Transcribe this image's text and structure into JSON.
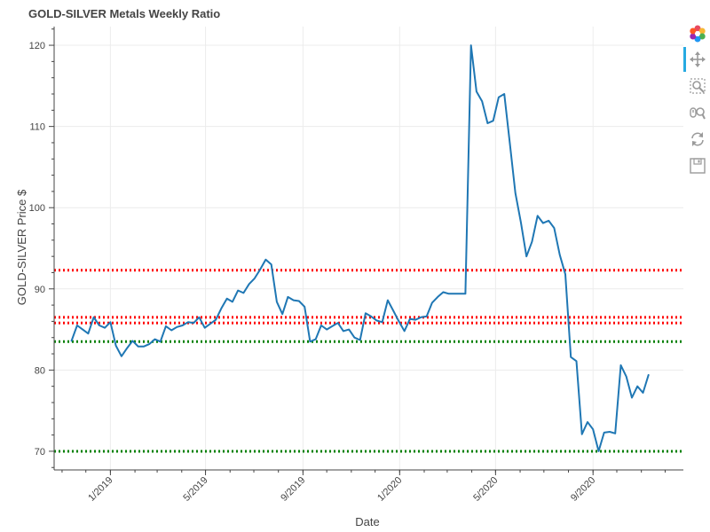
{
  "chart_data": {
    "type": "line",
    "title": "GOLD-SILVER Metals Weekly Ratio",
    "xlabel": "Date",
    "ylabel": "GOLD-SILVER Price $",
    "x_range": [
      "2018-10-22",
      "2020-12-24"
    ],
    "ylim": [
      67.7,
      122.3
    ],
    "y_ticks": [
      70,
      80,
      90,
      100,
      110,
      120
    ],
    "x_ticks": [
      {
        "date": "2019-01-01",
        "label": "1/2019"
      },
      {
        "date": "2019-05-01",
        "label": "5/2019"
      },
      {
        "date": "2019-09-01",
        "label": "9/2019"
      },
      {
        "date": "2020-01-01",
        "label": "1/2020"
      },
      {
        "date": "2020-05-01",
        "label": "5/2020"
      },
      {
        "date": "2020-09-01",
        "label": "9/2020"
      }
    ],
    "grid": true,
    "series": [
      {
        "color": "#1f77b4",
        "points": [
          [
            "2018-11-13",
            83.6
          ],
          [
            "2018-11-20",
            85.5
          ],
          [
            "2018-11-27",
            85.0
          ],
          [
            "2018-12-04",
            84.5
          ],
          [
            "2018-12-11",
            86.5
          ],
          [
            "2018-12-18",
            85.5
          ],
          [
            "2018-12-25",
            85.2
          ],
          [
            "2019-01-01",
            85.9
          ],
          [
            "2019-01-08",
            83.0
          ],
          [
            "2019-01-15",
            81.7
          ],
          [
            "2019-01-22",
            82.7
          ],
          [
            "2019-01-29",
            83.6
          ],
          [
            "2019-02-05",
            82.9
          ],
          [
            "2019-02-12",
            82.9
          ],
          [
            "2019-02-19",
            83.2
          ],
          [
            "2019-02-26",
            83.8
          ],
          [
            "2019-03-05",
            83.5
          ],
          [
            "2019-03-12",
            85.4
          ],
          [
            "2019-03-19",
            84.9
          ],
          [
            "2019-03-26",
            85.3
          ],
          [
            "2019-04-02",
            85.5
          ],
          [
            "2019-04-09",
            85.9
          ],
          [
            "2019-04-16",
            85.8
          ],
          [
            "2019-04-23",
            86.5
          ],
          [
            "2019-04-30",
            85.2
          ],
          [
            "2019-05-07",
            85.7
          ],
          [
            "2019-05-14",
            86.2
          ],
          [
            "2019-05-21",
            87.6
          ],
          [
            "2019-05-28",
            88.8
          ],
          [
            "2019-06-04",
            88.4
          ],
          [
            "2019-06-11",
            89.8
          ],
          [
            "2019-06-18",
            89.5
          ],
          [
            "2019-06-25",
            90.6
          ],
          [
            "2019-07-02",
            91.3
          ],
          [
            "2019-07-09",
            92.4
          ],
          [
            "2019-07-16",
            93.6
          ],
          [
            "2019-07-23",
            93.0
          ],
          [
            "2019-07-30",
            88.4
          ],
          [
            "2019-08-06",
            86.9
          ],
          [
            "2019-08-13",
            89.0
          ],
          [
            "2019-08-20",
            88.6
          ],
          [
            "2019-08-27",
            88.5
          ],
          [
            "2019-09-03",
            87.8
          ],
          [
            "2019-09-10",
            83.5
          ],
          [
            "2019-09-17",
            83.8
          ],
          [
            "2019-09-24",
            85.5
          ],
          [
            "2019-10-01",
            85.0
          ],
          [
            "2019-10-08",
            85.4
          ],
          [
            "2019-10-15",
            85.8
          ],
          [
            "2019-10-22",
            84.8
          ],
          [
            "2019-10-29",
            85.0
          ],
          [
            "2019-11-05",
            84.0
          ],
          [
            "2019-11-12",
            83.7
          ],
          [
            "2019-11-19",
            87.0
          ],
          [
            "2019-11-26",
            86.6
          ],
          [
            "2019-12-03",
            86.1
          ],
          [
            "2019-12-10",
            85.9
          ],
          [
            "2019-12-17",
            88.6
          ],
          [
            "2019-12-24",
            87.3
          ],
          [
            "2019-12-31",
            86.0
          ],
          [
            "2020-01-07",
            84.8
          ],
          [
            "2020-01-14",
            86.3
          ],
          [
            "2020-01-21",
            86.2
          ],
          [
            "2020-01-28",
            86.5
          ],
          [
            "2020-02-04",
            86.6
          ],
          [
            "2020-02-11",
            88.3
          ],
          [
            "2020-02-18",
            89.0
          ],
          [
            "2020-02-25",
            89.6
          ],
          [
            "2020-03-03",
            89.4
          ],
          [
            "2020-03-10",
            89.4
          ],
          [
            "2020-03-17",
            89.4
          ],
          [
            "2020-03-24",
            89.4
          ],
          [
            "2020-03-31",
            120.0
          ],
          [
            "2020-04-07",
            114.3
          ],
          [
            "2020-04-14",
            113.1
          ],
          [
            "2020-04-21",
            110.4
          ],
          [
            "2020-04-28",
            110.7
          ],
          [
            "2020-05-05",
            113.6
          ],
          [
            "2020-05-12",
            114.0
          ],
          [
            "2020-05-19",
            108.0
          ],
          [
            "2020-05-26",
            101.8
          ],
          [
            "2020-06-02",
            98.2
          ],
          [
            "2020-06-09",
            94.0
          ],
          [
            "2020-06-16",
            95.8
          ],
          [
            "2020-06-23",
            99.0
          ],
          [
            "2020-06-30",
            98.1
          ],
          [
            "2020-07-07",
            98.4
          ],
          [
            "2020-07-14",
            97.5
          ],
          [
            "2020-07-21",
            94.2
          ],
          [
            "2020-07-28",
            91.8
          ],
          [
            "2020-08-04",
            81.6
          ],
          [
            "2020-08-11",
            81.1
          ],
          [
            "2020-08-18",
            72.1
          ],
          [
            "2020-08-25",
            73.6
          ],
          [
            "2020-09-01",
            72.7
          ],
          [
            "2020-09-08",
            70.0
          ],
          [
            "2020-09-15",
            72.3
          ],
          [
            "2020-09-22",
            72.4
          ],
          [
            "2020-09-29",
            72.2
          ],
          [
            "2020-10-06",
            80.6
          ],
          [
            "2020-10-13",
            79.2
          ],
          [
            "2020-10-20",
            76.6
          ],
          [
            "2020-10-27",
            78.0
          ],
          [
            "2020-11-03",
            77.2
          ],
          [
            "2020-11-10",
            79.4
          ]
        ]
      }
    ],
    "reference_lines": [
      {
        "y": 92.3,
        "color": "#ff0000"
      },
      {
        "y": 86.5,
        "color": "#ff0000"
      },
      {
        "y": 85.8,
        "color": "#ff0000"
      },
      {
        "y": 83.5,
        "color": "#008000"
      },
      {
        "y": 70.0,
        "color": "#008000"
      }
    ]
  },
  "toolbar": {
    "tools": [
      "bokeh-logo-icon",
      "pan-icon",
      "box-zoom-icon",
      "wheel-zoom-icon",
      "reset-icon",
      "save-icon"
    ]
  }
}
